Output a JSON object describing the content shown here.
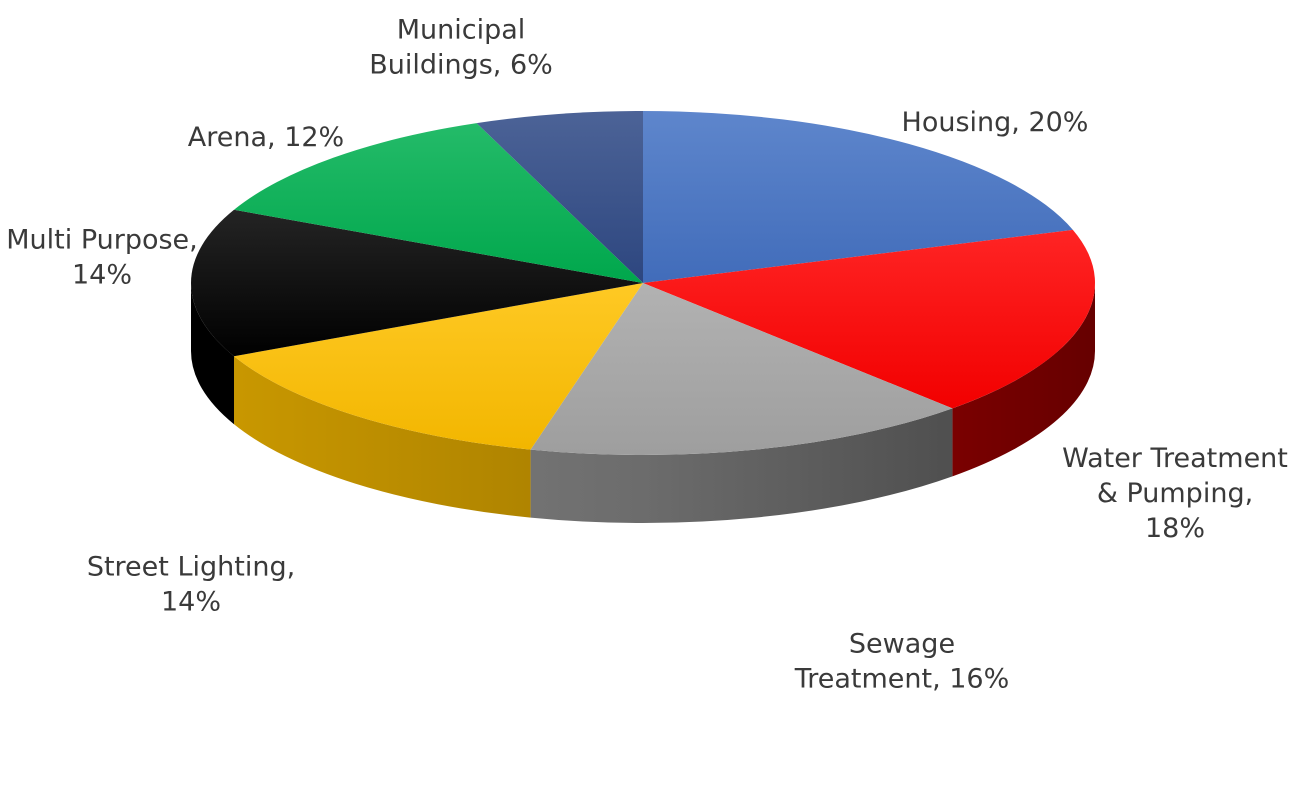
{
  "chart_data": {
    "type": "pie",
    "style": "3d",
    "slices": [
      {
        "label": "Housing",
        "value": 20,
        "text": [
          "Housing, 20%"
        ],
        "color": "#4472C4"
      },
      {
        "label": "Water Treatment & Pumping",
        "value": 18,
        "text": [
          "Water Treatment",
          "& Pumping,",
          "18%"
        ],
        "color": "#FF0000"
      },
      {
        "label": "Sewage Treatment",
        "value": 16,
        "text": [
          "Sewage",
          "Treatment, 16%"
        ],
        "color": "#A6A6A6"
      },
      {
        "label": "Street Lighting",
        "value": 14,
        "text": [
          "Street Lighting,",
          "14%"
        ],
        "color": "#FFC000"
      },
      {
        "label": "Multi Purpose",
        "value": 14,
        "text": [
          "Multi Purpose,",
          "14%"
        ],
        "color": "#000000"
      },
      {
        "label": "Arena",
        "value": 12,
        "text": [
          "Arena, 12%"
        ],
        "color": "#00B050"
      },
      {
        "label": "Municipal Buildings",
        "value": 6,
        "text": [
          "Municipal",
          "Buildings, 6%"
        ],
        "color": "#2F4A86"
      }
    ],
    "value_unit": "%",
    "legend": "none"
  }
}
